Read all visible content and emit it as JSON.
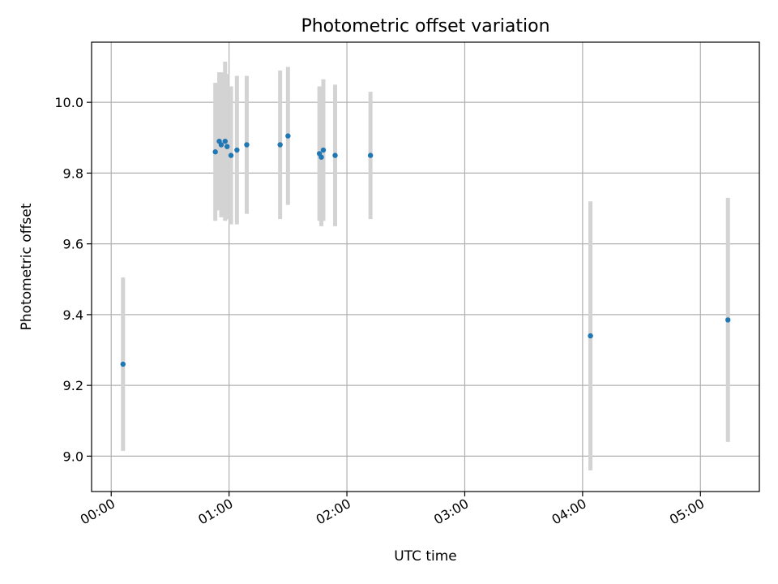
{
  "chart_data": {
    "type": "scatter",
    "title": "Photometric offset variation",
    "xlabel": "UTC time",
    "ylabel": "Photometric offset",
    "xlim": [
      "23:50",
      "05:30"
    ],
    "ylim": [
      8.9,
      10.17
    ],
    "grid": true,
    "x_ticks": [
      "00:00",
      "01:00",
      "02:00",
      "03:00",
      "04:00",
      "05:00"
    ],
    "y_ticks": [
      "9.0",
      "9.2",
      "9.4",
      "9.6",
      "9.8",
      "10.0"
    ],
    "series": [
      {
        "x": [
          "00:06",
          "00:53",
          "00:55",
          "00:56",
          "00:58",
          "00:59",
          "01:01",
          "01:04",
          "01:09",
          "01:26",
          "01:30",
          "01:46",
          "01:47",
          "01:48",
          "01:54",
          "02:12",
          "04:04",
          "05:14"
        ],
        "y": [
          9.26,
          9.86,
          9.89,
          9.88,
          9.89,
          9.875,
          9.85,
          9.865,
          9.88,
          9.88,
          9.905,
          9.855,
          9.845,
          9.865,
          9.85,
          9.85,
          9.34,
          9.385
        ],
        "err": [
          0.245,
          0.195,
          0.195,
          0.205,
          0.225,
          0.205,
          0.195,
          0.21,
          0.195,
          0.21,
          0.195,
          0.19,
          0.195,
          0.2,
          0.2,
          0.18,
          0.38,
          0.345
        ]
      }
    ],
    "colors": {
      "marker": "#1f77b4",
      "errorbar": "#d3d3d3",
      "grid": "#b0b0b0"
    }
  }
}
